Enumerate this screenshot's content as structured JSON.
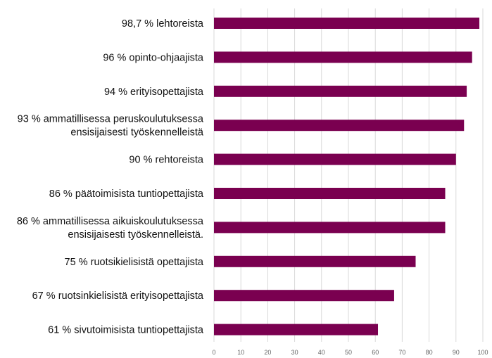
{
  "chart_data": {
    "type": "bar",
    "orientation": "horizontal",
    "categories": [
      "98,7 % lehtoreista",
      "96 % opinto-ohjaajista",
      "94 % erityisopettajista",
      "93 % ammatillisessa peruskoulutuksessa ensisijaisesti työskennelleistä",
      "90 % rehtoreista",
      "86 % päätoimisista tuntiopettajista",
      "86 % ammatillisessa aikuiskoulutuksessa ensisijaisesti työskennelleistä.",
      "75 % ruotsikielisistä opettajista",
      "67 % ruotsinkielisistä erityisopettajista",
      "61 % sivutoimisista tuntiopettajista"
    ],
    "category_lines": [
      [
        "98,7 % lehtoreista"
      ],
      [
        "96 % opinto-ohjaajista"
      ],
      [
        "94 % erityisopettajista"
      ],
      [
        "93 % ammatillisessa peruskoulutuksessa",
        "ensisijaisesti työskennelleistä"
      ],
      [
        "90 % rehtoreista"
      ],
      [
        "86 % päätoimisista tuntiopettajista"
      ],
      [
        "86 % ammatillisessa aikuiskoulutuksessa",
        "ensisijaisesti työskennelleistä."
      ],
      [
        "75 % ruotsikielisistä opettajista"
      ],
      [
        "67 % ruotsinkielisistä erityisopettajista"
      ],
      [
        "61 % sivutoimisista tuntiopettajista"
      ]
    ],
    "values": [
      98.7,
      96,
      94,
      93,
      90,
      86,
      86,
      75,
      67,
      61
    ],
    "xlim": [
      0,
      100
    ],
    "x_ticks": [
      "0",
      "10",
      "20",
      "30",
      "40",
      "50",
      "60",
      "70",
      "80",
      "90",
      "100"
    ],
    "grid": "vertical",
    "legend": "none",
    "title": "",
    "xlabel": "",
    "ylabel": "",
    "colors": {
      "bar": "#7a0050",
      "grid": "#d9d9d9",
      "text": "#111111",
      "tick": "#666666"
    }
  }
}
